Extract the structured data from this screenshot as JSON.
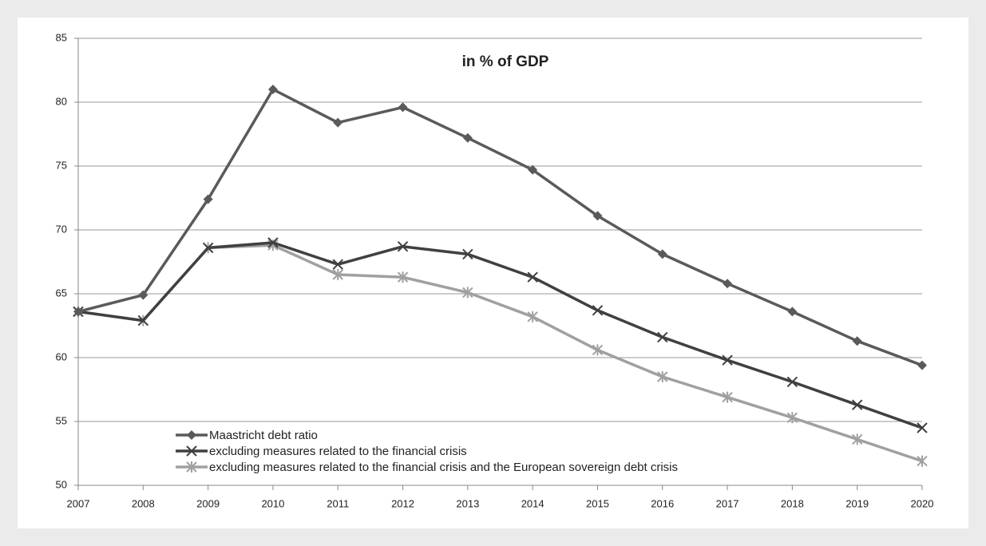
{
  "chart_data": {
    "type": "line",
    "title": "in % of GDP",
    "categories": [
      "2007",
      "2008",
      "2009",
      "2010",
      "2011",
      "2012",
      "2013",
      "2014",
      "2015",
      "2016",
      "2017",
      "2018",
      "2019",
      "2020"
    ],
    "series": [
      {
        "name": "Maastricht debt ratio",
        "color": "#5a5a5a",
        "marker": "diamond",
        "values": [
          63.6,
          64.9,
          72.4,
          81.0,
          78.4,
          79.6,
          77.2,
          74.7,
          71.1,
          68.1,
          65.8,
          63.6,
          61.3,
          59.4
        ]
      },
      {
        "name": "excluding measures related to the financial crisis",
        "color": "#404040",
        "marker": "x",
        "values": [
          63.6,
          62.9,
          68.6,
          69.0,
          67.3,
          68.7,
          68.1,
          66.3,
          63.7,
          61.6,
          59.8,
          58.1,
          56.3,
          54.5
        ]
      },
      {
        "name": "excluding measures related to the financial crisis and the European sovereign debt crisis",
        "color": "#a0a0a0",
        "marker": "asterisk",
        "values": [
          63.6,
          62.9,
          68.6,
          68.8,
          66.5,
          66.3,
          65.1,
          63.2,
          60.6,
          58.5,
          56.9,
          55.3,
          53.6,
          51.9
        ]
      }
    ],
    "ylim": [
      50,
      85
    ],
    "yticks": [
      50,
      55,
      60,
      65,
      70,
      75,
      80,
      85
    ],
    "grid": true,
    "legend": "bottom-left"
  }
}
